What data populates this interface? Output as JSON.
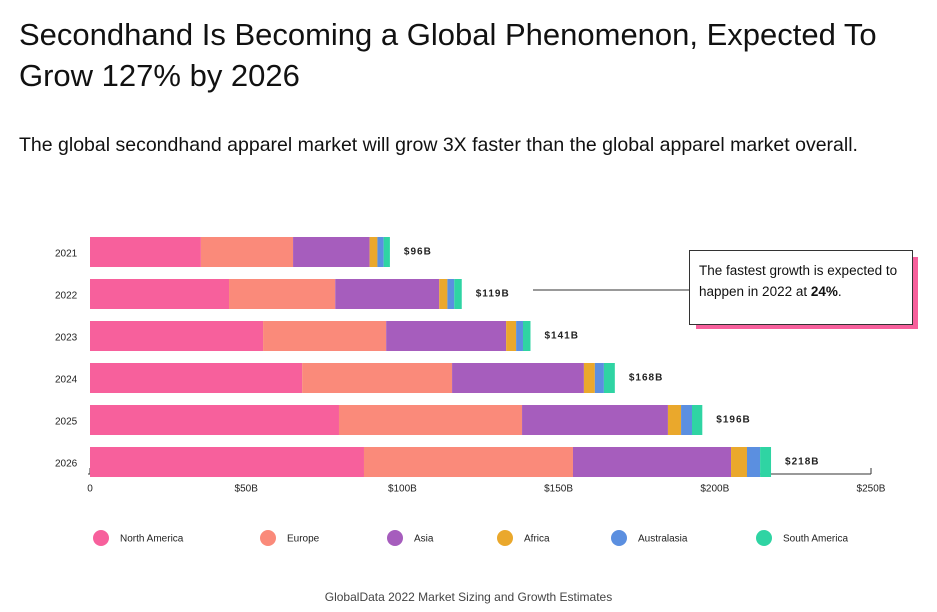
{
  "chart_data": {
    "type": "stacked_barh",
    "title": "Secondhand Is Becoming a Global Phenomenon, Expected To Grow 127% by 2026",
    "subtitle": "The global secondhand apparel market will grow 3X faster than the global apparel market overall.",
    "categories": [
      "2021",
      "2022",
      "2023",
      "2024",
      "2025",
      "2026"
    ],
    "series": [
      {
        "name": "North America",
        "color": "#f7609c",
        "values": [
          35.5,
          44.5,
          55.4,
          67.9,
          79.7,
          87.7
        ]
      },
      {
        "name": "Europe",
        "color": "#fa8a7a",
        "values": [
          29.5,
          34,
          39.4,
          48,
          58.6,
          66.9
        ]
      },
      {
        "name": "Asia",
        "color": "#a65dbd",
        "values": [
          24.5,
          33.3,
          38.4,
          42.2,
          46.7,
          50.6
        ]
      },
      {
        "name": "Africa",
        "color": "#eaa82c",
        "values": [
          2.5,
          2.6,
          3.2,
          3.5,
          4.2,
          5.1
        ]
      },
      {
        "name": "Australasia",
        "color": "#5b8fe0",
        "values": [
          2,
          2.2,
          2.2,
          2.9,
          3.5,
          4.2
        ]
      },
      {
        "name": "South America",
        "color": "#2fd4a3",
        "values": [
          2,
          2.4,
          2.4,
          3.5,
          3.3,
          3.5
        ]
      }
    ],
    "total_values": [
      96,
      119,
      141,
      168,
      196,
      218
    ],
    "total_value_labels": [
      "$96B",
      "$119B",
      "$141B",
      "$168B",
      "$196B",
      "$218B"
    ],
    "xlim": [
      0,
      250
    ],
    "xticks": [
      0,
      {
        "value": 50,
        "label": "$50B"
      },
      {
        "value": 100,
        "label": "$100B"
      },
      {
        "value": 150,
        "label": "$150B"
      },
      {
        "value": 200,
        "label": "$200B"
      },
      {
        "value": 250,
        "label": "$250B"
      }
    ],
    "annotation": {
      "text": "The fastest growth is expected to happen in 2022 at ",
      "highlight": "24%",
      "end": "."
    },
    "source": "GlobalData 2022 Market Sizing and Growth Estimates",
    "legend": "bottom"
  }
}
